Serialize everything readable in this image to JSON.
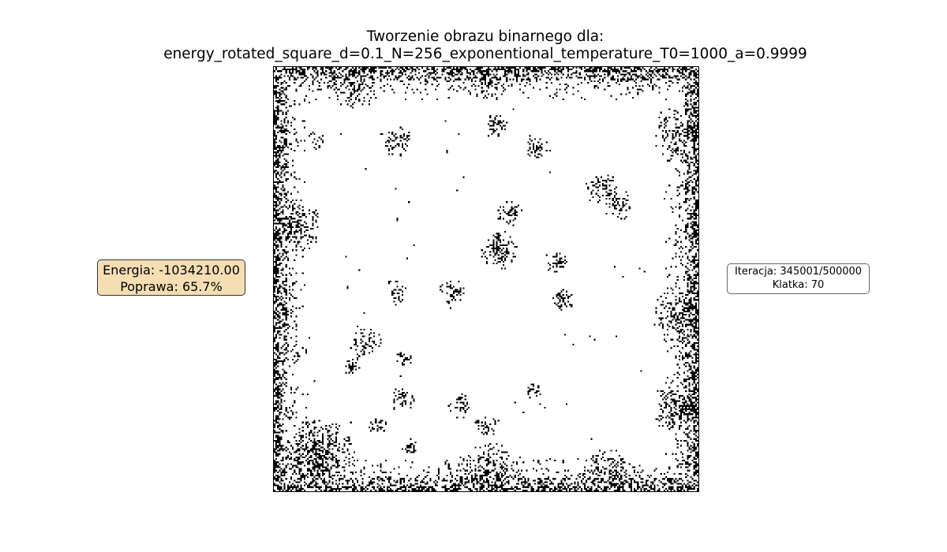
{
  "title": {
    "line1": "Tworzenie obrazu binarnego dla:",
    "line2": "energy_rotated_square_d=0.1_N=256_exponentional_temperature_T0=1000_a=0.9999"
  },
  "energy_panel": {
    "energy_text": "Energia: -1034210.00",
    "improvement_text": "Poprawa: 65.7%",
    "background_color": "#f5deb3"
  },
  "iteration_panel": {
    "iteration_text": "Iteracja: 345001/500000",
    "frame_text": "Klatka: 70"
  },
  "binary_image": {
    "grid_size": 256,
    "colors": {
      "on": "#000000",
      "off": "#ffffff"
    }
  }
}
